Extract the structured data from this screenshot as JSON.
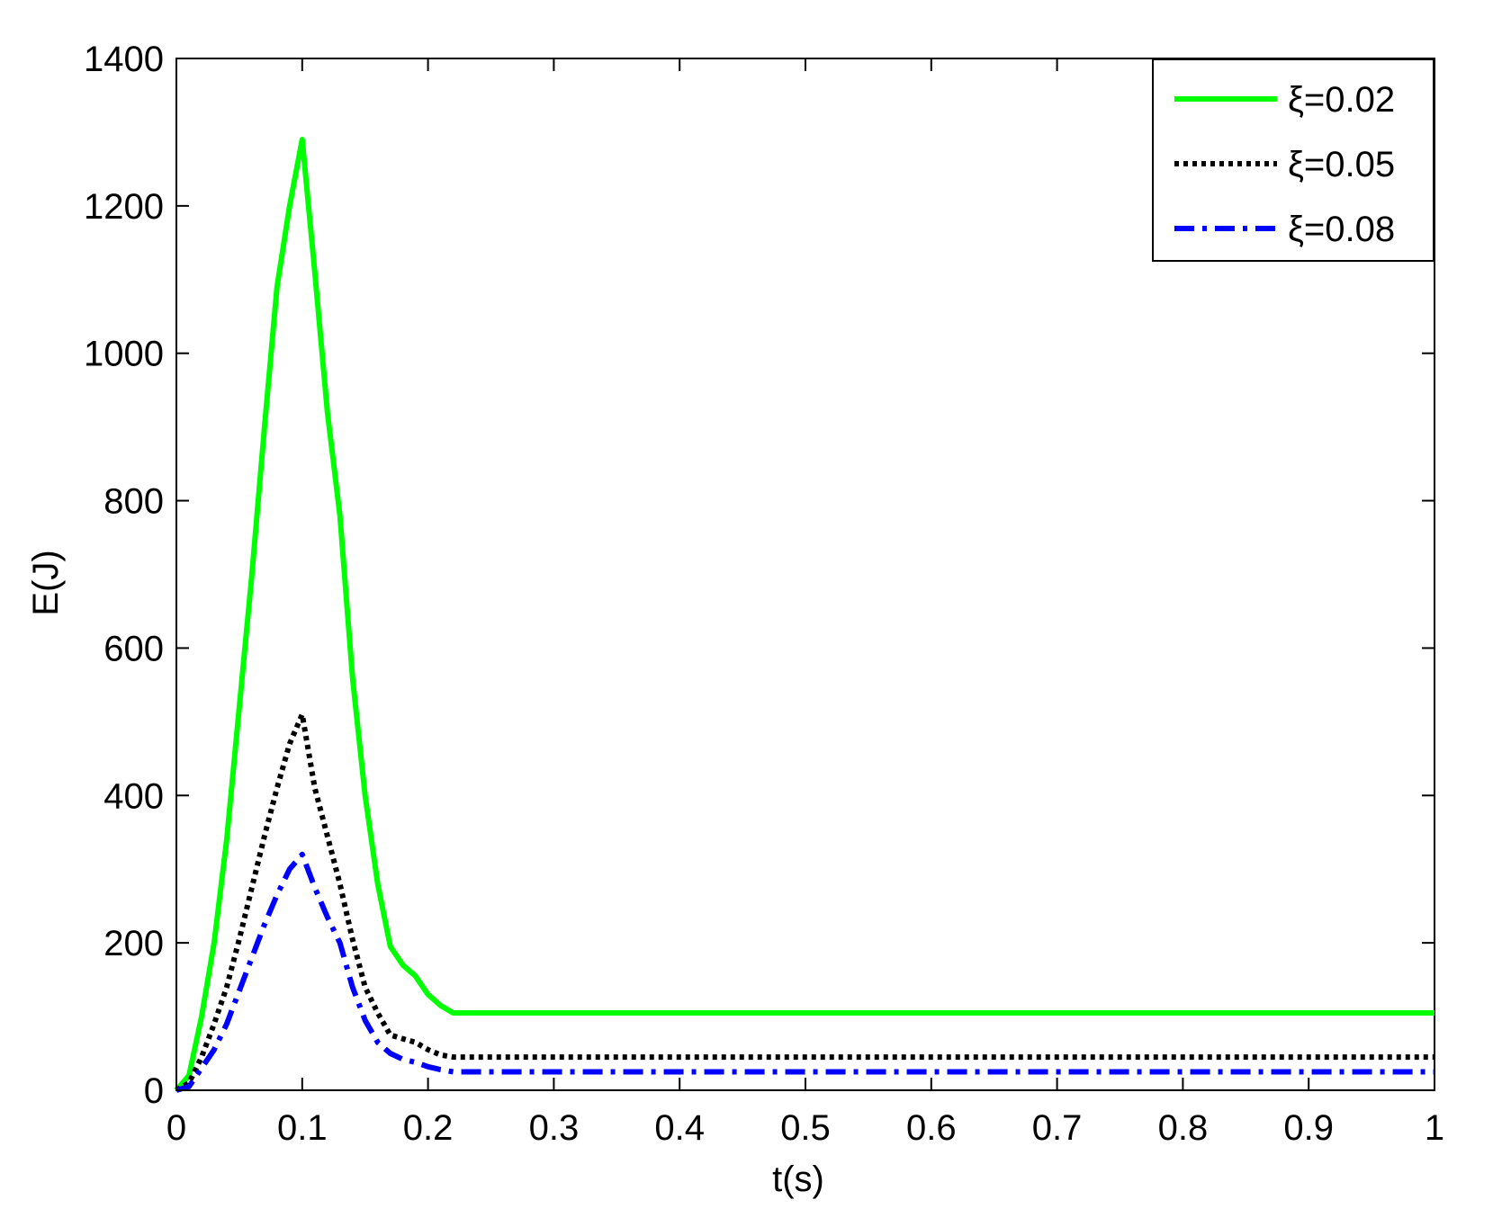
{
  "chart_data": {
    "type": "line",
    "title": "",
    "xlabel": "t(s)",
    "ylabel": "E(J)",
    "xlim": [
      0,
      1
    ],
    "ylim": [
      0,
      1400
    ],
    "xticks": [
      0,
      0.1,
      0.2,
      0.3,
      0.4,
      0.5,
      0.6,
      0.7,
      0.8,
      0.9,
      1
    ],
    "xtick_labels": [
      "0",
      "0.1",
      "0.2",
      "0.3",
      "0.4",
      "0.5",
      "0.6",
      "0.7",
      "0.8",
      "0.9",
      "1"
    ],
    "yticks": [
      0,
      200,
      400,
      600,
      800,
      1000,
      1200,
      1400
    ],
    "ytick_labels": [
      "0",
      "200",
      "400",
      "600",
      "800",
      "1000",
      "1200",
      "1400"
    ],
    "grid": false,
    "legend_position": "top-right",
    "series": [
      {
        "name": "ξ=0.02",
        "color": "#00ff00",
        "style": "solid",
        "x": [
          0,
          0.01,
          0.02,
          0.03,
          0.04,
          0.05,
          0.06,
          0.07,
          0.08,
          0.09,
          0.1,
          0.11,
          0.12,
          0.13,
          0.14,
          0.15,
          0.16,
          0.17,
          0.18,
          0.19,
          0.2,
          0.21,
          0.22,
          1
        ],
        "y": [
          0,
          20,
          100,
          200,
          340,
          520,
          700,
          900,
          1090,
          1200,
          1290,
          1110,
          920,
          780,
          560,
          400,
          280,
          195,
          170,
          155,
          130,
          115,
          105,
          105
        ]
      },
      {
        "name": "ξ=0.05",
        "color": "#000000",
        "style": "dotted",
        "x": [
          0,
          0.01,
          0.02,
          0.03,
          0.04,
          0.05,
          0.06,
          0.07,
          0.08,
          0.09,
          0.1,
          0.11,
          0.12,
          0.13,
          0.14,
          0.15,
          0.16,
          0.17,
          0.18,
          0.19,
          0.2,
          0.21,
          0.22,
          1
        ],
        "y": [
          0,
          10,
          45,
          90,
          140,
          205,
          275,
          345,
          410,
          470,
          510,
          410,
          345,
          280,
          205,
          140,
          105,
          75,
          70,
          65,
          55,
          48,
          45,
          45
        ]
      },
      {
        "name": "ξ=0.08",
        "color": "#0000ff",
        "style": "dashdot",
        "x": [
          0,
          0.01,
          0.02,
          0.03,
          0.04,
          0.05,
          0.06,
          0.07,
          0.08,
          0.09,
          0.1,
          0.11,
          0.12,
          0.13,
          0.14,
          0.15,
          0.16,
          0.17,
          0.18,
          0.19,
          0.2,
          0.21,
          0.22,
          1
        ],
        "y": [
          0,
          5,
          30,
          55,
          90,
          135,
          180,
          225,
          265,
          300,
          320,
          275,
          235,
          200,
          140,
          95,
          65,
          50,
          42,
          38,
          32,
          28,
          25,
          25
        ]
      }
    ]
  }
}
